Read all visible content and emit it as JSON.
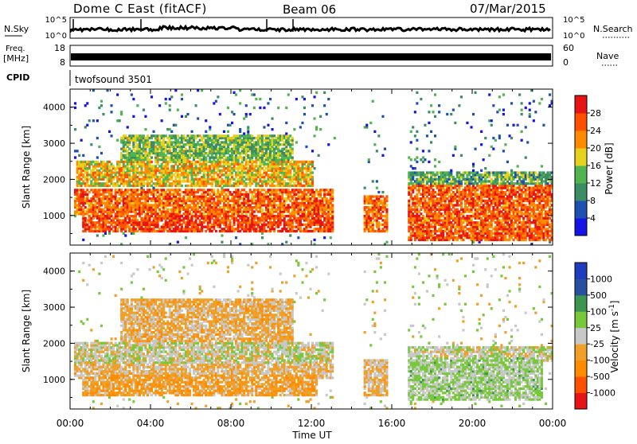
{
  "header": {
    "station": "Dome C East (fitACF)",
    "beam": "Beam 06",
    "date": "07/Mar/2015"
  },
  "noise_panel": {
    "left_label": "N.Sky",
    "right_label": "N.Search",
    "ticks_left": [
      "10^5",
      "10^0"
    ],
    "ticks_right": [
      "10^5",
      "10^0"
    ]
  },
  "freq_panel": {
    "left_label_line1": "Freq.",
    "left_label_line2": "[MHz]",
    "right_label": "Nave",
    "ticks_left": [
      "18",
      "8"
    ],
    "ticks_right": [
      "60",
      "0"
    ]
  },
  "cpid_panel": {
    "label": "CPID",
    "program": "twofsound 3501"
  },
  "x_axis": {
    "title": "Time UT",
    "tick_labels": [
      "00:00",
      "04:00",
      "08:00",
      "12:00",
      "16:00",
      "20:00",
      "00:00"
    ],
    "range_hours": [
      0,
      24
    ]
  },
  "colors": {
    "power_scale": [
      "#1414e6",
      "#1e50b4",
      "#3c8c64",
      "#50b450",
      "#e6d21e",
      "#ff8c00",
      "#ff5000",
      "#e61414"
    ],
    "velocity_scale": [
      "#e61414",
      "#ff5000",
      "#ff8c00",
      "#f0a028",
      "#c8c8c8",
      "#78c83c",
      "#3c9650",
      "#2850a0",
      "#1e3cbe"
    ]
  },
  "chart_data": [
    {
      "type": "heatmap",
      "title": "",
      "xlabel": "",
      "ylabel": "Slant Range [km]",
      "ylim": [
        180,
        4500
      ],
      "y_ticks": [
        "1000",
        "2000",
        "3000",
        "4000"
      ],
      "colorbar": {
        "label": "Power [dB]",
        "ticks": [
          "4",
          "8",
          "12",
          "16",
          "20",
          "24",
          "28"
        ],
        "range": [
          0,
          32
        ]
      },
      "coverage_hours": [
        [
          0.2,
          13.1
        ],
        [
          14.5,
          15.7
        ],
        [
          16.7,
          24.0
        ]
      ],
      "bands": [
        {
          "range_km": [
            500,
            1000
          ],
          "hours": [
            0.6,
            13.0
          ],
          "power_db": 29
        },
        {
          "range_km": [
            1000,
            1700
          ],
          "hours": [
            0.2,
            13.0
          ],
          "power_db": 26
        },
        {
          "range_km": [
            1800,
            2500
          ],
          "hours": [
            0.3,
            12.0
          ],
          "power_db": 20
        },
        {
          "range_km": [
            2500,
            3200
          ],
          "hours": [
            2.5,
            11.0
          ],
          "power_db": 14
        },
        {
          "range_km": [
            500,
            1500
          ],
          "hours": [
            14.5,
            15.7
          ],
          "power_db": 26
        },
        {
          "range_km": [
            300,
            1800
          ],
          "hours": [
            16.7,
            24.0
          ],
          "power_db": 27
        },
        {
          "range_km": [
            1800,
            2200
          ],
          "hours": [
            16.7,
            24.0
          ],
          "power_db": 12
        }
      ]
    },
    {
      "type": "heatmap",
      "title": "",
      "xlabel": "Time UT",
      "ylabel": "Slant Range [km]",
      "ylim": [
        180,
        4500
      ],
      "y_ticks": [
        "1000",
        "2000",
        "3000",
        "4000"
      ],
      "colorbar": {
        "label": "Velocity [m s^-1]",
        "ticks": [
          "1000",
          "500",
          "100",
          "25",
          "-25",
          "-100",
          "-500",
          "-1000"
        ],
        "range": [
          -1000,
          1000
        ]
      },
      "coverage_hours": [
        [
          0.2,
          13.1
        ],
        [
          14.5,
          15.7
        ],
        [
          16.7,
          24.0
        ]
      ],
      "bands": [
        {
          "range_km": [
            500,
            1100
          ],
          "hours": [
            0.6,
            12.2
          ],
          "velocity": -300
        },
        {
          "range_km": [
            1400,
            2000
          ],
          "hours": [
            0.2,
            13.0
          ],
          "velocity": 0
        },
        {
          "range_km": [
            1000,
            2000
          ],
          "hours": [
            0.2,
            13.0
          ],
          "velocity": -150
        },
        {
          "range_km": [
            2000,
            3200
          ],
          "hours": [
            2.5,
            11.0
          ],
          "velocity": -200
        },
        {
          "range_km": [
            500,
            1500
          ],
          "hours": [
            14.5,
            15.7
          ],
          "velocity": -150
        },
        {
          "range_km": [
            400,
            1600
          ],
          "hours": [
            16.7,
            23.5
          ],
          "velocity": 150
        },
        {
          "range_km": [
            1500,
            1900
          ],
          "hours": [
            16.7,
            24.0
          ],
          "velocity": 0
        }
      ]
    }
  ]
}
